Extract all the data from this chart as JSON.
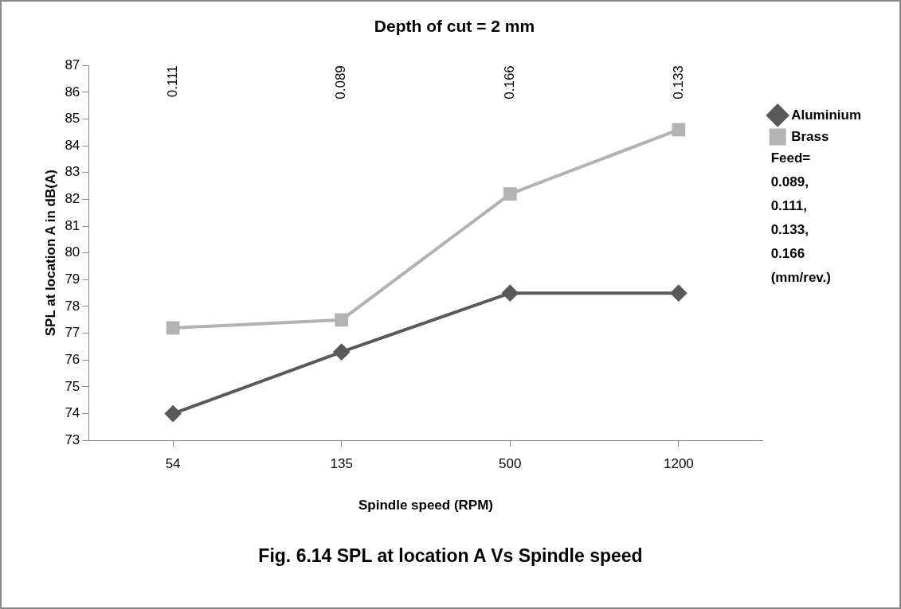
{
  "chart_data": {
    "type": "line",
    "title": "Depth of cut = 2 mm",
    "xlabel": "Spindle speed (RPM)",
    "ylabel": "SPL at location A in dB(A)",
    "categories": [
      "54",
      "135",
      "500",
      "1200"
    ],
    "series": [
      {
        "name": "Aluminium",
        "color": "#595959",
        "marker": "diamond",
        "values": [
          74,
          76.3,
          78.5,
          78.5
        ]
      },
      {
        "name": "Brass",
        "color": "#b2b2b2",
        "marker": "square",
        "values": [
          77.2,
          77.5,
          82.2,
          84.6
        ]
      }
    ],
    "ylim": [
      73,
      87
    ],
    "yticks": [
      73,
      74,
      75,
      76,
      77,
      78,
      79,
      80,
      81,
      82,
      83,
      84,
      85,
      86,
      87
    ],
    "grid": false,
    "legend": "right",
    "annotations": [
      "Feed=\n0.089,\n0.111,\n0.133,\n0.166\n(mm/rev.)",
      "0.111",
      "0.089",
      "0.166",
      "0.133",
      "Fig. 6.14 SPL at location A Vs Spindle speed"
    ]
  }
}
